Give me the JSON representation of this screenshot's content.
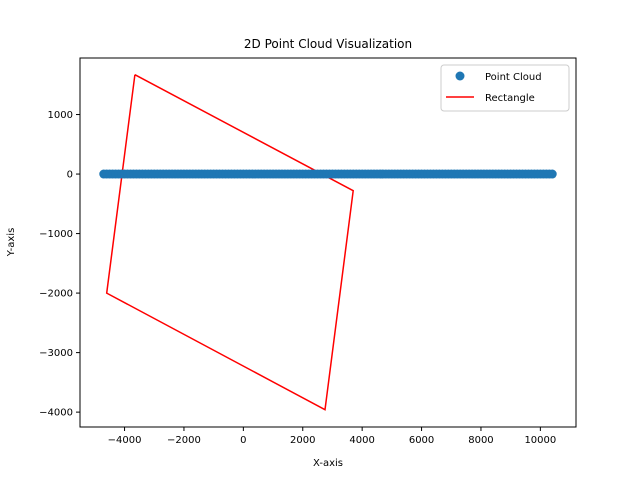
{
  "chart_data": {
    "type": "scatter",
    "title": "2D Point Cloud Visualization",
    "xlabel": "X-axis",
    "ylabel": "Y-axis",
    "xlim": [
      -5500,
      11200
    ],
    "ylim": [
      -4250,
      1950
    ],
    "xticks": [
      -4000,
      -2000,
      0,
      2000,
      4000,
      6000,
      8000,
      10000
    ],
    "xtick_labels": [
      "−4000",
      "−2000",
      "0",
      "2000",
      "4000",
      "6000",
      "8000",
      "10000"
    ],
    "yticks": [
      1000,
      0,
      -1000,
      -2000,
      -3000,
      -4000
    ],
    "ytick_labels": [
      "1000",
      "0",
      "−1000",
      "−2000",
      "−3000",
      "−4000"
    ],
    "grid": false,
    "legend_position": "top-right",
    "series": [
      {
        "name": "Point Cloud",
        "kind": "scatter",
        "color": "#1f77b4",
        "x_range": [
          -4700,
          10400
        ],
        "y_constant": 0,
        "point_count": 152
      },
      {
        "name": "Rectangle",
        "kind": "line",
        "color": "#ff0000",
        "x": [
          -3650,
          3700,
          2750,
          -4600,
          -3650
        ],
        "y": [
          1670,
          -280,
          -3960,
          -2000,
          1670
        ]
      }
    ]
  }
}
